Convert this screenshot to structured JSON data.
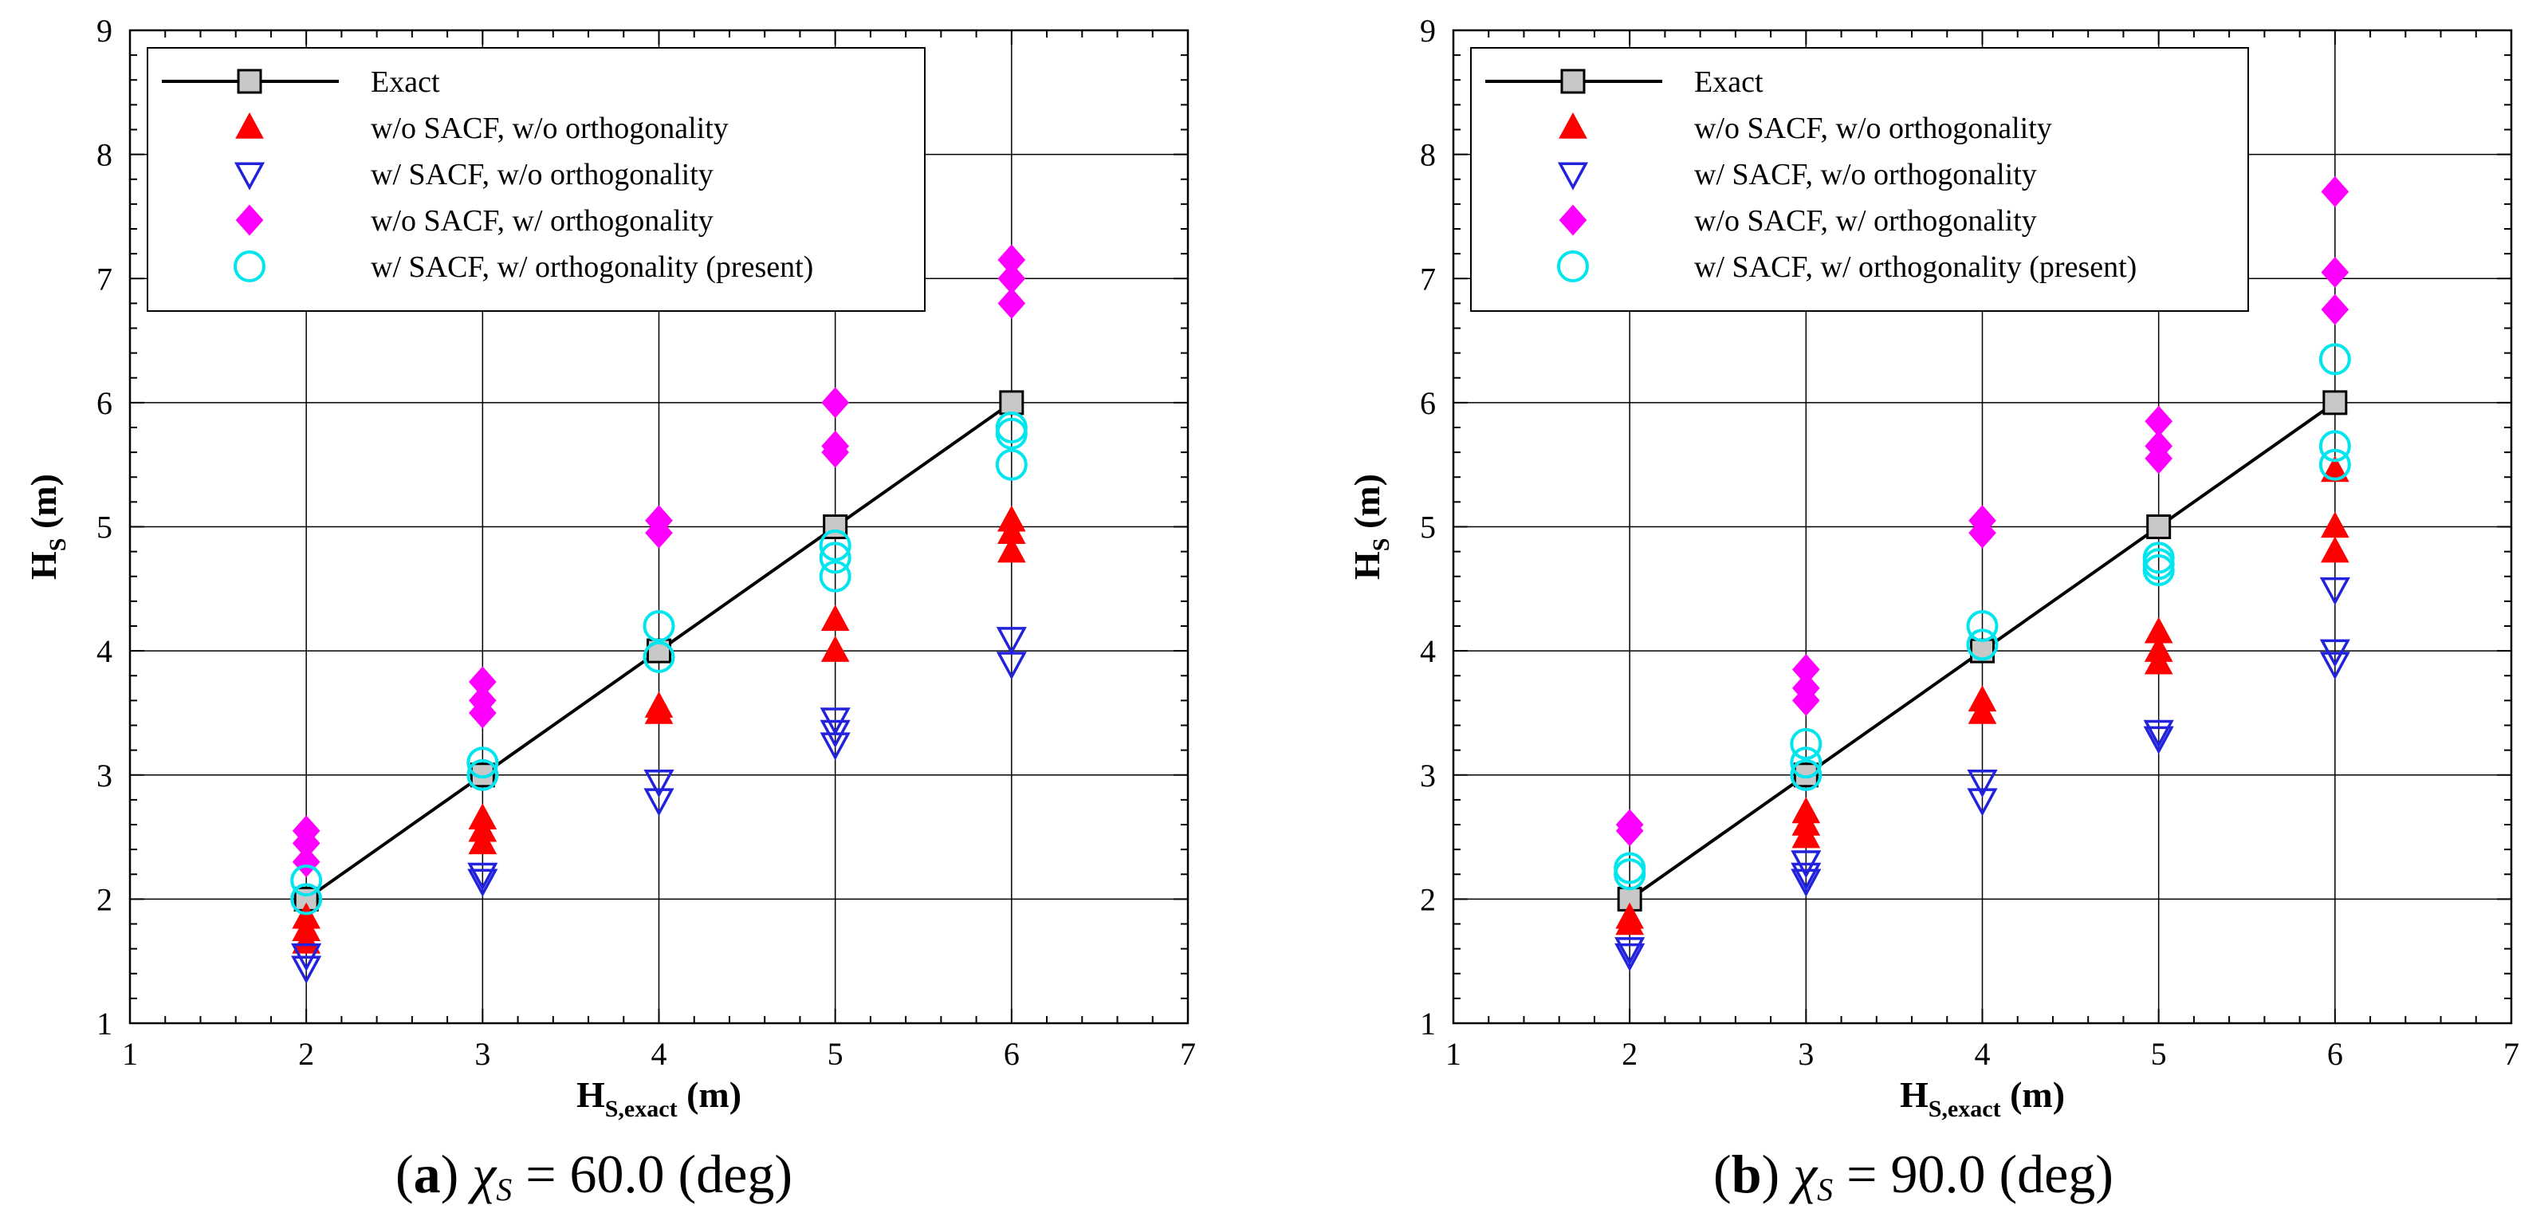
{
  "chart_data": [
    {
      "type": "scatter",
      "panel": "a",
      "caption": {
        "label": "a",
        "symbol": "χ",
        "subscript": "S",
        "value": " = 60.0 (deg)"
      },
      "xlabel": {
        "main": "H",
        "sub": "S,exact",
        "unit": " (m)"
      },
      "ylabel": {
        "main": "H",
        "sub": "S",
        "unit": " (m)"
      },
      "xlim": [
        1,
        7
      ],
      "ylim": [
        1,
        9
      ],
      "xticks": [
        "1",
        "2",
        "3",
        "4",
        "5",
        "6",
        "7"
      ],
      "yticks": [
        "1",
        "2",
        "3",
        "4",
        "5",
        "6",
        "7",
        "8",
        "9"
      ],
      "grid": true,
      "legend_position": "top-left",
      "series": [
        {
          "name": "Exact",
          "marker": "square-line",
          "x": [
            2,
            3,
            4,
            5,
            6
          ],
          "y": [
            2,
            3,
            4,
            5,
            6
          ]
        },
        {
          "name": "w/o SACF, w/o orthogonality",
          "marker": "triangle-up",
          "color": "#ff0000",
          "x": [
            2,
            2,
            2,
            3,
            3,
            3,
            4,
            4,
            5,
            5,
            6,
            6,
            6
          ],
          "y": [
            1.85,
            1.75,
            1.65,
            2.65,
            2.55,
            2.45,
            3.55,
            3.5,
            4.25,
            4.0,
            5.05,
            4.95,
            4.8
          ]
        },
        {
          "name": "w/ SACF, w/o orthogonality",
          "marker": "triangle-down",
          "color": "#2222dd",
          "x": [
            2,
            2,
            3,
            3,
            4,
            4,
            5,
            5,
            5,
            6,
            6
          ],
          "y": [
            1.55,
            1.45,
            2.2,
            2.15,
            2.95,
            2.8,
            3.45,
            3.35,
            3.25,
            4.1,
            3.9
          ]
        },
        {
          "name": "w/o SACF, w/ orthogonality",
          "marker": "diamond",
          "color": "#ff00ff",
          "x": [
            2,
            2,
            2,
            3,
            3,
            3,
            4,
            4,
            5,
            5,
            5,
            6,
            6,
            6
          ],
          "y": [
            2.55,
            2.45,
            2.3,
            3.75,
            3.6,
            3.5,
            5.05,
            4.95,
            6.0,
            5.65,
            5.6,
            7.15,
            7.0,
            6.8
          ]
        },
        {
          "name": "w/ SACF, w/ orthogonality (present)",
          "marker": "circle",
          "color": "#00e5ee",
          "x": [
            2,
            2,
            3,
            3,
            4,
            4,
            5,
            5,
            5,
            6,
            6,
            6
          ],
          "y": [
            2.15,
            2.0,
            3.1,
            3.0,
            4.2,
            3.95,
            4.85,
            4.75,
            4.6,
            5.8,
            5.75,
            5.5
          ]
        }
      ]
    },
    {
      "type": "scatter",
      "panel": "b",
      "caption": {
        "label": "b",
        "symbol": "χ",
        "subscript": "S",
        "value": " = 90.0 (deg)"
      },
      "xlabel": {
        "main": "H",
        "sub": "S,exact",
        "unit": " (m)"
      },
      "ylabel": {
        "main": "H",
        "sub": "S",
        "unit": " (m)"
      },
      "xlim": [
        1,
        7
      ],
      "ylim": [
        1,
        9
      ],
      "xticks": [
        "1",
        "2",
        "3",
        "4",
        "5",
        "6",
        "7"
      ],
      "yticks": [
        "1",
        "2",
        "3",
        "4",
        "5",
        "6",
        "7",
        "8",
        "9"
      ],
      "grid": true,
      "legend_position": "top-left",
      "series": [
        {
          "name": "Exact",
          "marker": "square-line",
          "x": [
            2,
            3,
            4,
            5,
            6
          ],
          "y": [
            2,
            3,
            4,
            5,
            6
          ]
        },
        {
          "name": "w/o SACF, w/o orthogonality",
          "marker": "triangle-up",
          "color": "#ff0000",
          "x": [
            2,
            2,
            3,
            3,
            3,
            4,
            4,
            5,
            5,
            5,
            6,
            6,
            6
          ],
          "y": [
            1.85,
            1.8,
            2.7,
            2.6,
            2.5,
            3.6,
            3.5,
            4.15,
            4.0,
            3.9,
            5.45,
            5.0,
            4.8
          ]
        },
        {
          "name": "w/ SACF, w/o orthogonality",
          "marker": "triangle-down",
          "color": "#2222dd",
          "x": [
            2,
            2,
            3,
            3,
            3,
            4,
            4,
            5,
            5,
            6,
            6,
            6
          ],
          "y": [
            1.6,
            1.55,
            2.3,
            2.2,
            2.15,
            2.95,
            2.8,
            3.35,
            3.3,
            4.5,
            4.0,
            3.9
          ]
        },
        {
          "name": "w/o SACF, w/ orthogonality",
          "marker": "diamond",
          "color": "#ff00ff",
          "x": [
            2,
            2,
            3,
            3,
            3,
            4,
            4,
            5,
            5,
            5,
            6,
            6,
            6
          ],
          "y": [
            2.6,
            2.55,
            3.85,
            3.7,
            3.6,
            5.05,
            4.95,
            5.85,
            5.65,
            5.55,
            7.7,
            7.05,
            6.75
          ]
        },
        {
          "name": "w/ SACF, w/ orthogonality (present)",
          "marker": "circle",
          "color": "#00e5ee",
          "x": [
            2,
            2,
            3,
            3,
            3,
            4,
            4,
            5,
            5,
            5,
            6,
            6,
            6
          ],
          "y": [
            2.25,
            2.2,
            3.25,
            3.1,
            3.0,
            4.2,
            4.05,
            4.75,
            4.7,
            4.65,
            6.35,
            5.65,
            5.5
          ]
        }
      ]
    }
  ]
}
